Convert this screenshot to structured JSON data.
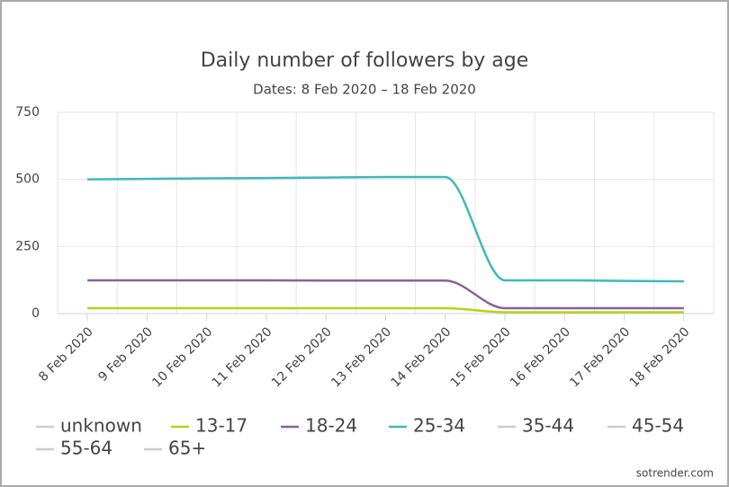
{
  "chart_data": {
    "type": "line",
    "title": "Daily number of followers by age",
    "subtitle": "Dates: 8 Feb 2020 – 18 Feb 2020",
    "categories": [
      "8 Feb 2020",
      "9 Feb 2020",
      "10 Feb 2020",
      "11 Feb 2020",
      "12 Feb 2020",
      "13 Feb 2020",
      "14 Feb 2020",
      "15 Feb 2020",
      "16 Feb 2020",
      "17 Feb 2020",
      "18 Feb 2020"
    ],
    "series": [
      {
        "name": "unknown",
        "color": "#cccccc",
        "hidden": true
      },
      {
        "name": "13-17",
        "color": "#b5d40f",
        "values": [
          20,
          20,
          20,
          20,
          20,
          20,
          20,
          5,
          5,
          5,
          5
        ]
      },
      {
        "name": "18-24",
        "color": "#8c5fa0",
        "values": [
          124,
          124,
          124,
          124,
          123,
          123,
          123,
          20,
          20,
          20,
          20
        ]
      },
      {
        "name": "25-34",
        "color": "#3fb8bb",
        "values": [
          500,
          502,
          504,
          505,
          507,
          509,
          509,
          124,
          124,
          122,
          120
        ]
      },
      {
        "name": "35-44",
        "color": "#cccccc",
        "hidden": true
      },
      {
        "name": "45-54",
        "color": "#cccccc",
        "hidden": true
      },
      {
        "name": "55-64",
        "color": "#cccccc",
        "hidden": true
      },
      {
        "name": "65+",
        "color": "#cccccc",
        "hidden": true
      }
    ],
    "ylim": [
      0,
      750
    ],
    "yticks": [
      0,
      250,
      500,
      750
    ],
    "grid": true,
    "credit": "sotrender.com"
  }
}
